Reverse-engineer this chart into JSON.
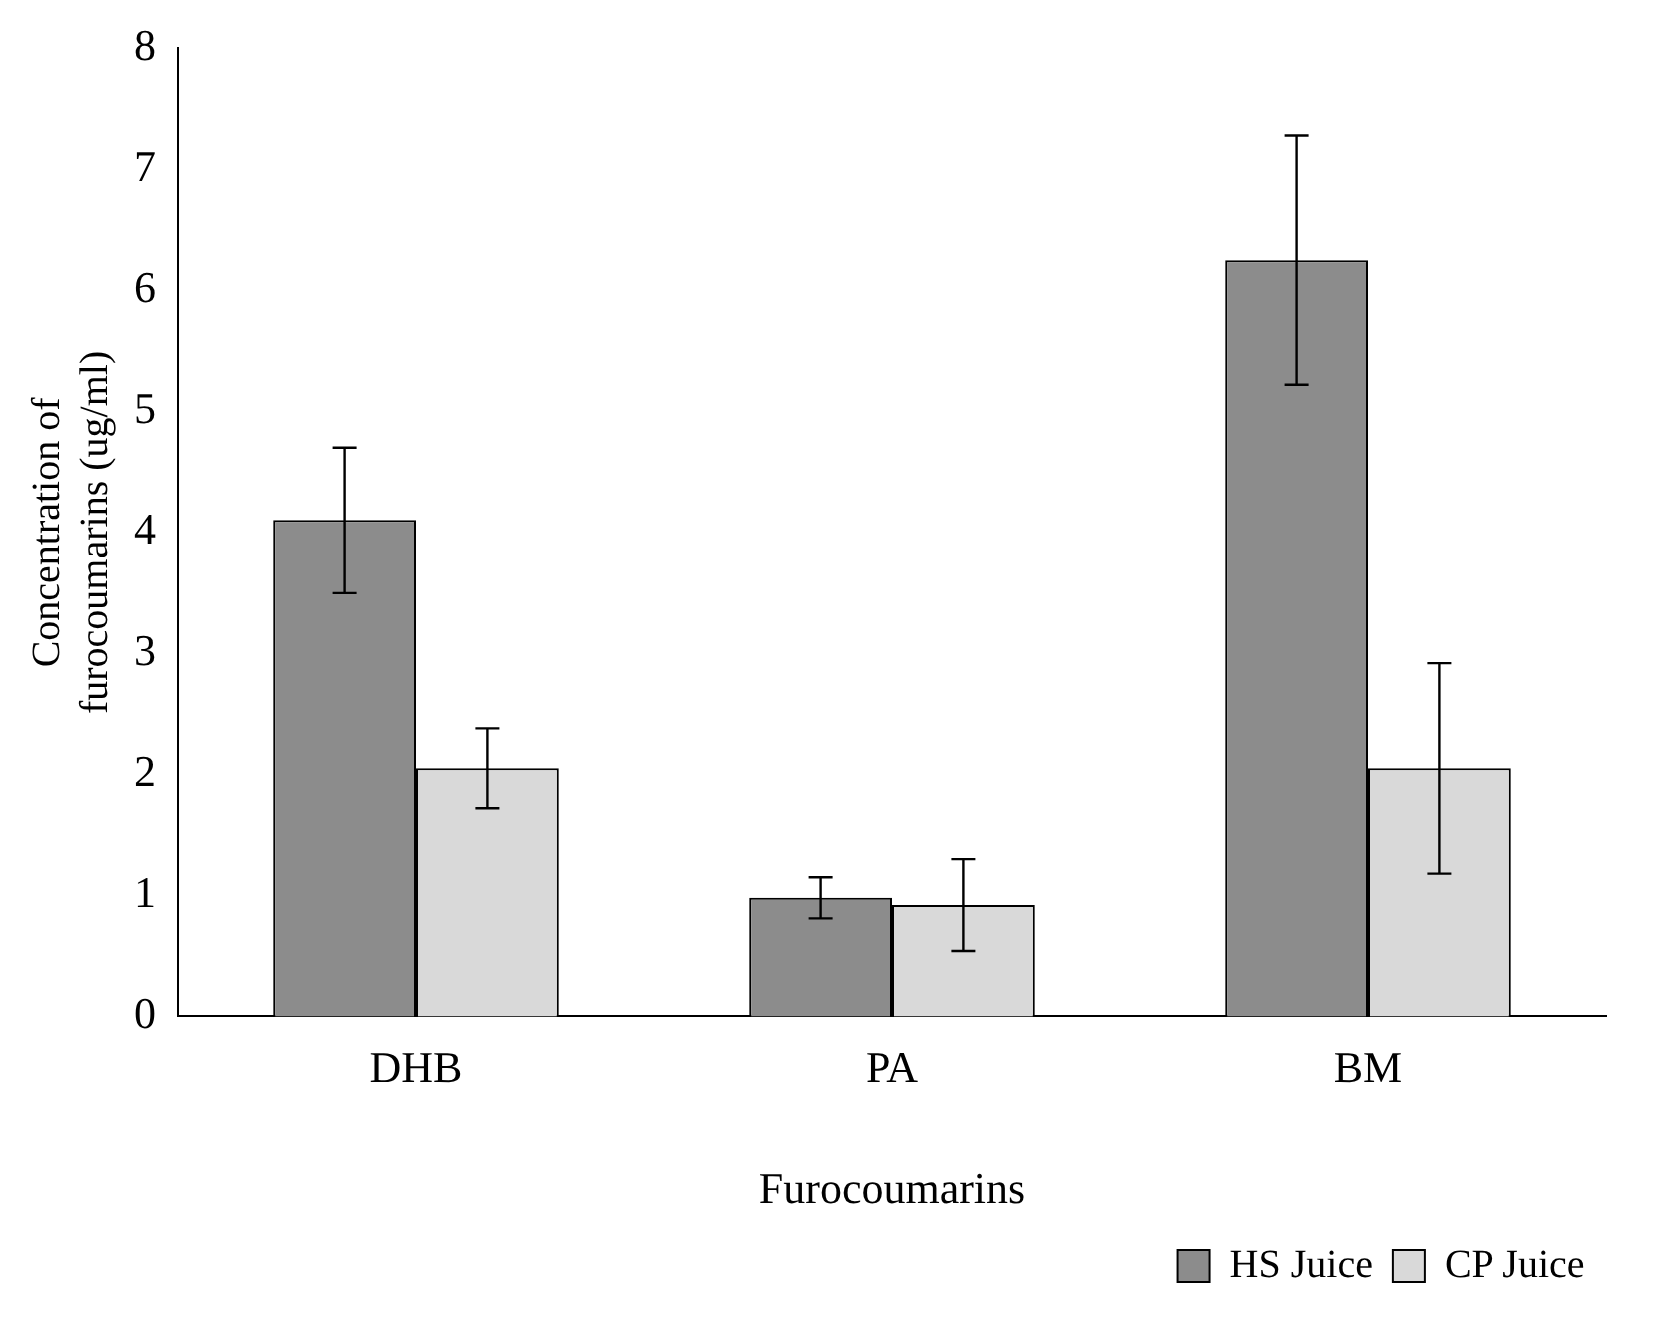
{
  "chart_data": {
    "type": "bar",
    "xlabel": "Furocoumarins",
    "ylabel": "Concentration of\nfurocoumarins (ug/ml)",
    "categories": [
      "DHB",
      "PA",
      "BM"
    ],
    "series": [
      {
        "name": "HS Juice",
        "color": "#8c8c8c",
        "values": [
          4.1,
          0.98,
          6.25
        ],
        "errors": [
          0.6,
          0.17,
          1.03
        ]
      },
      {
        "name": "CP Juice",
        "color": "#d9d9d9",
        "values": [
          2.05,
          0.92,
          2.05
        ],
        "errors": [
          0.33,
          0.38,
          0.87
        ]
      }
    ],
    "ylim": [
      0,
      8
    ],
    "yticks": [
      0,
      1,
      2,
      3,
      4,
      5,
      6,
      7,
      8
    ],
    "grid": false,
    "legend": "bottom right"
  }
}
